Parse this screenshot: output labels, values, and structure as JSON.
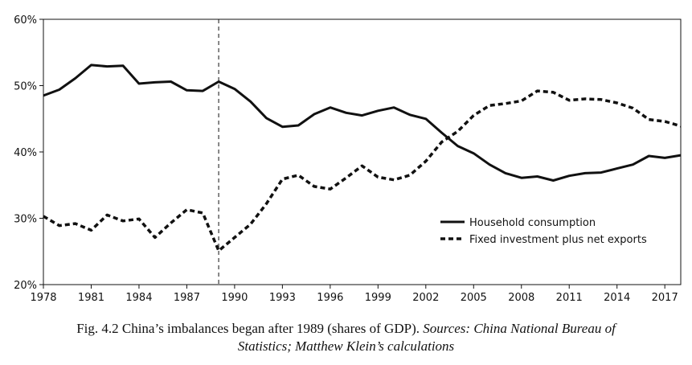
{
  "chart_data": {
    "type": "line",
    "title": "",
    "xlabel": "",
    "ylabel": "",
    "xlim": [
      1978,
      2018
    ],
    "ylim": [
      20,
      60
    ],
    "x_ticks": [
      "1978",
      "1981",
      "1984",
      "1987",
      "1990",
      "1993",
      "1996",
      "1999",
      "2002",
      "2005",
      "2008",
      "2011",
      "2014",
      "2017"
    ],
    "y_ticks": [
      "20%",
      "30%",
      "40%",
      "50%",
      "60%"
    ],
    "annotation_vline_x": 1989,
    "legend_position": "right, lower-middle",
    "x": [
      1978,
      1979,
      1980,
      1981,
      1982,
      1983,
      1984,
      1985,
      1986,
      1987,
      1988,
      1989,
      1990,
      1991,
      1992,
      1993,
      1994,
      1995,
      1996,
      1997,
      1998,
      1999,
      2000,
      2001,
      2002,
      2003,
      2004,
      2005,
      2006,
      2007,
      2008,
      2009,
      2010,
      2011,
      2012,
      2013,
      2014,
      2015,
      2016,
      2017,
      2018
    ],
    "series": [
      {
        "name": "Household consumption",
        "style": "solid",
        "values": [
          48.5,
          49.4,
          51.1,
          53.1,
          52.9,
          53.0,
          50.3,
          50.5,
          50.6,
          49.3,
          49.2,
          50.6,
          49.5,
          47.6,
          45.1,
          43.8,
          44.0,
          45.7,
          46.7,
          45.9,
          45.5,
          46.2,
          46.7,
          45.6,
          45.0,
          42.9,
          40.9,
          39.8,
          38.1,
          36.8,
          36.1,
          36.3,
          35.7,
          36.4,
          36.8,
          36.9,
          37.5,
          38.1,
          39.4,
          39.1,
          39.5
        ]
      },
      {
        "name": "Fixed investment plus net exports",
        "style": "dashed",
        "values": [
          30.3,
          28.9,
          29.2,
          28.2,
          30.5,
          29.6,
          29.9,
          27.1,
          29.3,
          31.3,
          30.8,
          25.1,
          27.1,
          29.1,
          32.2,
          35.9,
          36.5,
          34.8,
          34.4,
          36.1,
          37.9,
          36.2,
          35.8,
          36.5,
          38.6,
          41.5,
          43.1,
          45.5,
          47.0,
          47.3,
          47.7,
          49.2,
          49.0,
          47.8,
          48.0,
          47.9,
          47.4,
          46.6,
          44.9,
          44.6,
          43.9
        ]
      }
    ]
  },
  "caption": {
    "main": "Fig. 4.2 China’s imbalances began after 1989 (shares of GDP). ",
    "sources_italic": "Sources: China National Bureau of",
    "line2_italic": "Statistics; Matthew Klein’s calculations"
  }
}
